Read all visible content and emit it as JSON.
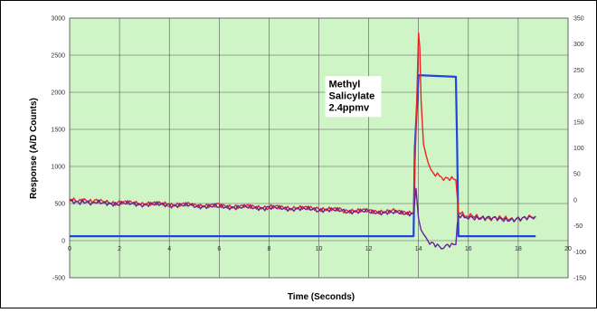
{
  "chart_data": {
    "type": "line",
    "title": "",
    "xlabel": "Time (Seconds)",
    "ylabel": "Response (A/D Counts)",
    "xlim": [
      0,
      20
    ],
    "ylim": [
      -500,
      3000
    ],
    "y2lim": [
      -150,
      350
    ],
    "grid": true,
    "x_ticks": [
      "0",
      "2",
      "4",
      "6",
      "8",
      "10",
      "12",
      "14",
      "16",
      "18",
      "20"
    ],
    "y_ticks": [
      "-500",
      "0",
      "500",
      "1000",
      "1500",
      "2000",
      "2500",
      "3000"
    ],
    "y2_ticks": [
      "-150",
      "-100",
      "-50",
      "0",
      "50",
      "100",
      "150",
      "200",
      "250",
      "300",
      "350"
    ],
    "annotation": {
      "lines": [
        "Methyl",
        "Salicylate",
        "2.4ppmv"
      ],
      "x": 10.4,
      "y": 2070
    },
    "series": [
      {
        "name": "",
        "color": "#2244dd",
        "axis": "secondary",
        "x": [
          0,
          13.8,
          13.85,
          14,
          15.5,
          15.55,
          15.6,
          18.7
        ],
        "y": [
          -70,
          -70,
          100,
          240,
          237,
          100,
          -70,
          -70
        ]
      },
      {
        "name": "",
        "color": "#ee2222",
        "axis": "primary",
        "x": [
          0,
          0.5,
          1,
          2,
          3,
          4,
          5,
          6,
          7,
          8,
          9,
          10,
          11,
          12,
          13,
          13.8,
          13.9,
          14.0,
          14.05,
          14.1,
          14.2,
          14.4,
          14.6,
          15.0,
          15.5,
          15.55,
          15.6,
          16,
          17,
          18,
          18.7
        ],
        "y": [
          560,
          540,
          530,
          510,
          500,
          490,
          480,
          470,
          460,
          450,
          440,
          430,
          410,
          400,
          390,
          380,
          1500,
          2800,
          2600,
          1900,
          1300,
          1000,
          900,
          850,
          820,
          600,
          380,
          330,
          300,
          290,
          320
        ]
      },
      {
        "name": "",
        "color": "#662299",
        "axis": "primary",
        "x": [
          0,
          0.5,
          1,
          2,
          3,
          4,
          5,
          6,
          7,
          8,
          9,
          10,
          11,
          12,
          13,
          13.8,
          13.9,
          14.0,
          14.1,
          14.3,
          14.6,
          15.0,
          15.5,
          15.55,
          15.6,
          16,
          17,
          18,
          18.7
        ],
        "y": [
          540,
          520,
          510,
          500,
          490,
          480,
          470,
          460,
          450,
          440,
          430,
          420,
          400,
          390,
          380,
          370,
          700,
          300,
          150,
          20,
          -60,
          -90,
          -50,
          200,
          350,
          320,
          300,
          280,
          330
        ]
      }
    ]
  }
}
